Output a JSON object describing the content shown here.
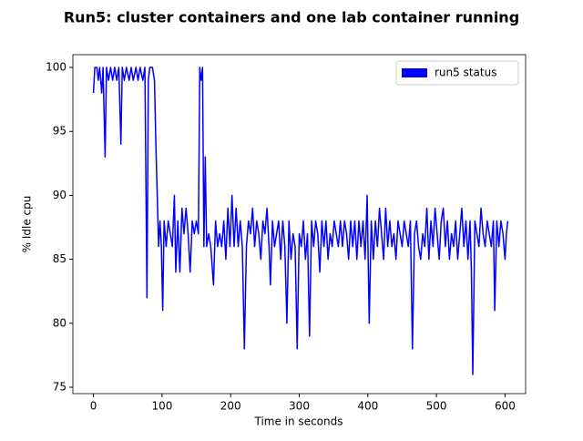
{
  "chart_data": {
    "type": "line",
    "title": "Run5: cluster containers and one lab container running",
    "x_label": "Time  in seconds",
    "y_label": "% Idle cpu",
    "x": [
      0,
      2,
      5,
      7,
      9,
      12,
      14,
      17,
      19,
      22,
      25,
      28,
      31,
      34,
      37,
      40,
      42,
      45,
      48,
      52,
      55,
      58,
      62,
      65,
      68,
      72,
      75,
      78,
      80,
      82,
      86,
      89,
      91,
      93,
      95,
      97,
      99,
      101,
      103,
      106,
      109,
      112,
      115,
      118,
      120,
      123,
      126,
      129,
      132,
      135,
      138,
      141,
      144,
      147,
      150,
      153,
      155,
      157,
      159,
      161,
      163,
      165,
      168,
      171,
      175,
      178,
      181,
      184,
      187,
      190,
      193,
      196,
      199,
      202,
      205,
      208,
      211,
      214,
      217,
      220,
      223,
      226,
      229,
      232,
      235,
      238,
      241,
      244,
      247,
      250,
      253,
      256,
      258,
      261,
      264,
      267,
      270,
      273,
      276,
      279,
      282,
      285,
      288,
      291,
      294,
      297,
      300,
      303,
      306,
      309,
      312,
      315,
      318,
      321,
      324,
      327,
      330,
      333,
      336,
      339,
      342,
      345,
      348,
      351,
      354,
      357,
      360,
      363,
      366,
      369,
      372,
      375,
      378,
      381,
      384,
      387,
      390,
      393,
      396,
      399,
      402,
      405,
      408,
      411,
      414,
      417,
      420,
      423,
      426,
      429,
      432,
      435,
      438,
      441,
      444,
      447,
      450,
      453,
      456,
      459,
      462,
      465,
      468,
      471,
      474,
      477,
      480,
      483,
      486,
      489,
      492,
      495,
      498,
      501,
      504,
      507,
      510,
      513,
      516,
      519,
      522,
      525,
      528,
      531,
      534,
      537,
      540,
      543,
      546,
      549,
      551,
      553,
      556,
      559,
      562,
      565,
      568,
      571,
      574,
      577,
      580,
      583,
      585,
      588,
      591,
      594,
      597,
      600,
      602,
      604
    ],
    "series": [
      {
        "name": "run5 status",
        "color": "#0000ff",
        "values": [
          98,
          100,
          100,
          99,
          100,
          98,
          100,
          93,
          100,
          99,
          100,
          99,
          100,
          99,
          100,
          94,
          100,
          99,
          100,
          99,
          100,
          99,
          100,
          99,
          100,
          99,
          100,
          82,
          99,
          100,
          100,
          99,
          94,
          90,
          86,
          88,
          86,
          81,
          88,
          86,
          88,
          87,
          86,
          90,
          84,
          88,
          84,
          89,
          87,
          89,
          87,
          84,
          88,
          87,
          88,
          87,
          100,
          99,
          100,
          86,
          93,
          86,
          87,
          86,
          83,
          88,
          86,
          87,
          86,
          88,
          85,
          89,
          86,
          90,
          86,
          89,
          86,
          88,
          86,
          78,
          86,
          88,
          87,
          89,
          86,
          88,
          87,
          85,
          88,
          87,
          89,
          86,
          83,
          88,
          86,
          87,
          88,
          85,
          88,
          86,
          80,
          88,
          85,
          87,
          86,
          78,
          87,
          86,
          88,
          85,
          87,
          79,
          88,
          86,
          88,
          87,
          84,
          88,
          86,
          88,
          85,
          87,
          86,
          88,
          87,
          86,
          88,
          86,
          88,
          87,
          85,
          88,
          86,
          88,
          85,
          88,
          86,
          88,
          85,
          90,
          80,
          88,
          85,
          88,
          86,
          89,
          87,
          85,
          89,
          86,
          88,
          86,
          87,
          85,
          88,
          87,
          86,
          88,
          87,
          86,
          88,
          78,
          87,
          88,
          86,
          85,
          87,
          86,
          89,
          85,
          88,
          86,
          89,
          87,
          85,
          88,
          89,
          86,
          88,
          85,
          87,
          86,
          88,
          85,
          87,
          89,
          86,
          88,
          85,
          88,
          84,
          76,
          88,
          87,
          86,
          89,
          87,
          86,
          88,
          87,
          86,
          88,
          81,
          88,
          86,
          88,
          87,
          85,
          87,
          88
        ]
      }
    ],
    "xlim": [
      -30,
      630
    ],
    "ylim": [
      74.5,
      101
    ],
    "xticks": [
      0,
      100,
      200,
      300,
      400,
      500,
      600
    ],
    "yticks": [
      75,
      80,
      85,
      90,
      95,
      100
    ],
    "legend": "upper right"
  }
}
